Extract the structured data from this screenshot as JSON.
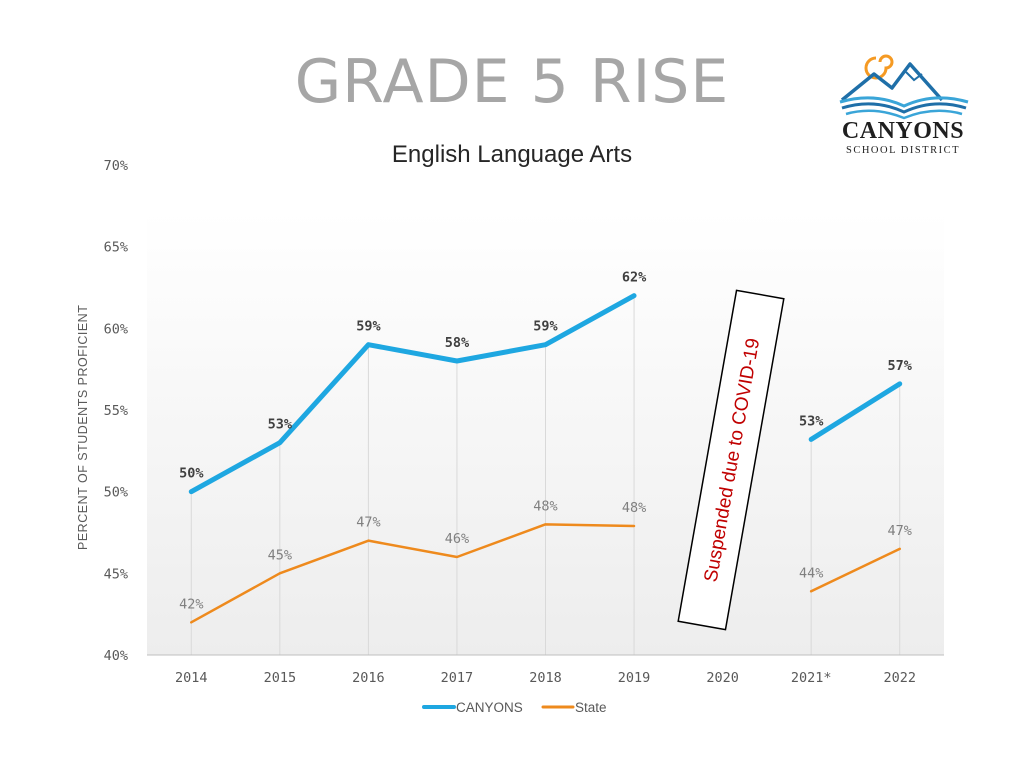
{
  "header": {
    "title": "GRADE 5 RISE",
    "subtitle": "English Language Arts"
  },
  "logo": {
    "name": "CANYONS",
    "subname": "SCHOOL DISTRICT",
    "colors": {
      "sun": "#f59a23",
      "mountains": "#1f6fa8",
      "waves": "#3aa5d8"
    }
  },
  "chart_data": {
    "type": "line",
    "title": "English Language Arts",
    "xlabel": "",
    "ylabel": "PERCENT OF STUDENTS PROFICIENT",
    "categories": [
      "2014",
      "2015",
      "2016",
      "2017",
      "2018",
      "2019",
      "2020",
      "2021*",
      "2022"
    ],
    "yticks": [
      "40%",
      "45%",
      "50%",
      "55%",
      "60%",
      "65%",
      "70%"
    ],
    "ylim": [
      40,
      70
    ],
    "grid": "vertical lines at data points",
    "legend": "bottom-center",
    "annotation": "Suspended due to COVID-19",
    "series": [
      {
        "name": "CANYONS",
        "color": "#1ea7e1",
        "values": [
          50,
          53,
          59,
          58,
          59,
          62,
          null,
          53.2,
          56.6
        ],
        "labels": [
          "50%",
          "53%",
          "59%",
          "58%",
          "59%",
          "62%",
          "",
          "53%",
          "57%"
        ]
      },
      {
        "name": "State",
        "color": "#ee8a1d",
        "values": [
          42,
          45,
          47,
          46,
          48,
          47.9,
          null,
          43.9,
          46.5
        ],
        "labels": [
          "42%",
          "45%",
          "47%",
          "46%",
          "48%",
          "48%",
          "",
          "44%",
          "47%"
        ]
      }
    ]
  }
}
